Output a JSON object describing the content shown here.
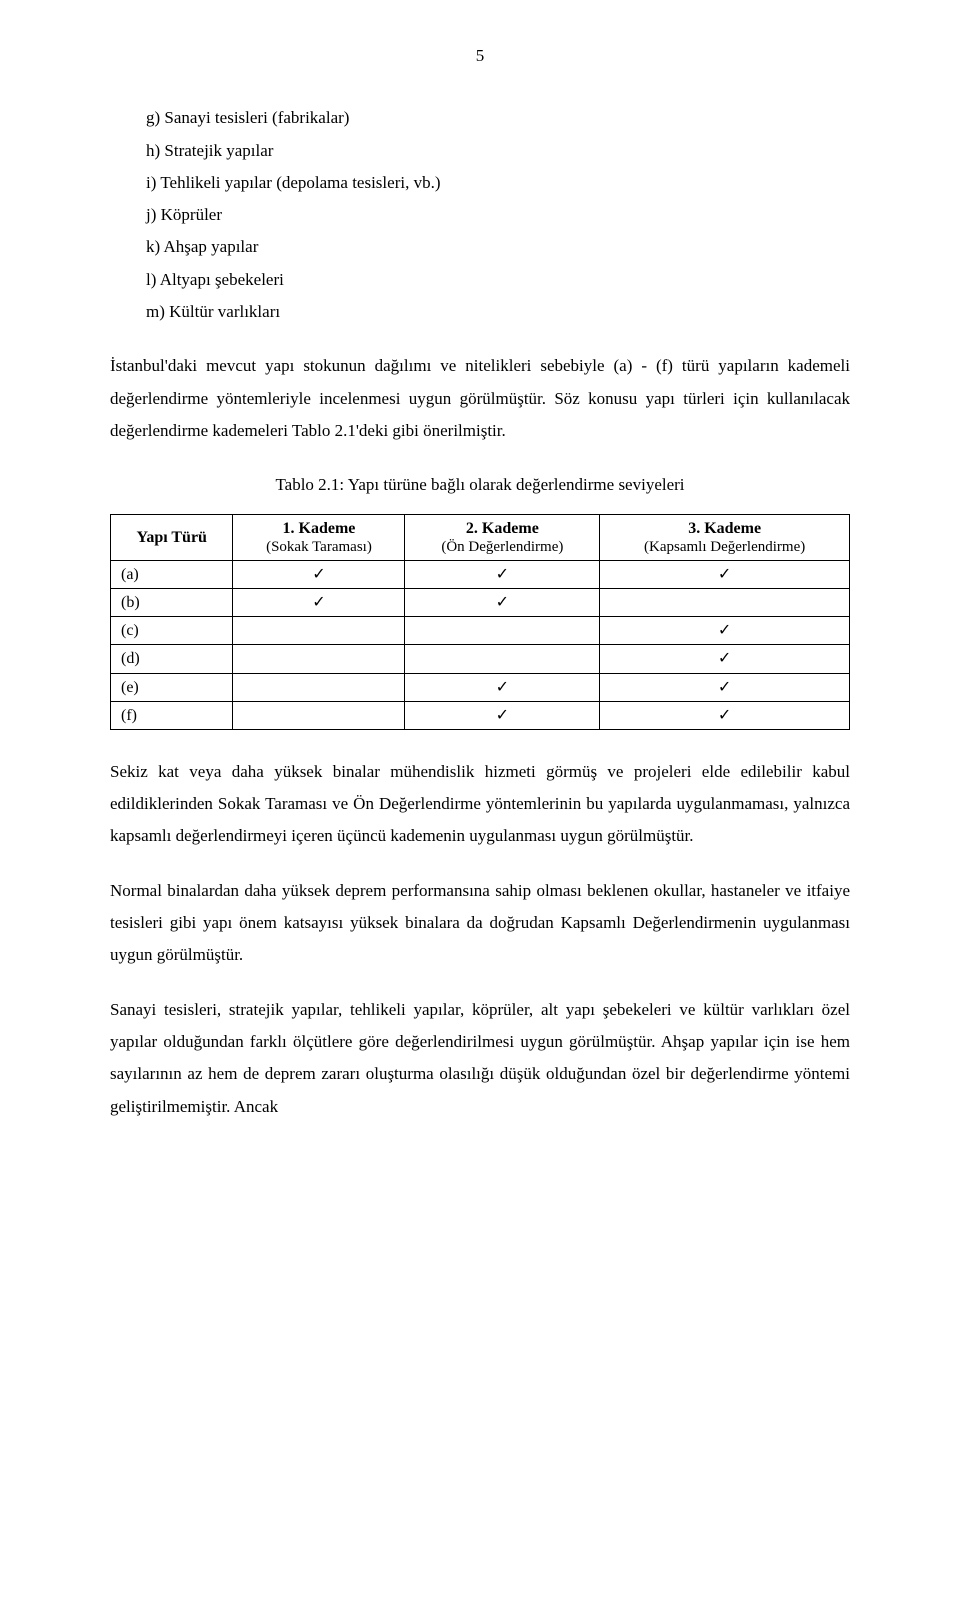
{
  "page_number": "5",
  "list": {
    "items": [
      "g)  Sanayi tesisleri (fabrikalar)",
      "h)  Stratejik yapılar",
      "i)  Tehlikeli yapılar (depolama tesisleri, vb.)",
      "j)  Köprüler",
      "k)  Ahşap yapılar",
      "l)  Altyapı şebekeleri",
      "m) Kültür varlıkları"
    ]
  },
  "para1": "İstanbul'daki mevcut yapı stokunun dağılımı ve nitelikleri sebebiyle (a) - (f) türü yapıların kademeli değerlendirme yöntemleriyle incelenmesi uygun görülmüştür. Söz konusu yapı türleri için kullanılacak değerlendirme kademeleri Tablo 2.1'deki gibi önerilmiştir.",
  "table": {
    "caption": "Tablo 2.1: Yapı türüne bağlı olarak değerlendirme seviyeleri",
    "check_glyph": "✓",
    "headers": {
      "c0": "Yapı Türü",
      "c1_top": "1. Kademe",
      "c1_sub": "(Sokak Taraması)",
      "c2_top": "2. Kademe",
      "c2_sub": "(Ön Değerlendirme)",
      "c3_top": "3. Kademe",
      "c3_sub": "(Kapsamlı Değerlendirme)"
    },
    "rows": [
      {
        "label": "(a)",
        "c1": true,
        "c2": true,
        "c3": true
      },
      {
        "label": "(b)",
        "c1": true,
        "c2": true,
        "c3": false
      },
      {
        "label": "(c)",
        "c1": false,
        "c2": false,
        "c3": true
      },
      {
        "label": "(d)",
        "c1": false,
        "c2": false,
        "c3": true
      },
      {
        "label": "(e)",
        "c1": false,
        "c2": true,
        "c3": true
      },
      {
        "label": "(f)",
        "c1": false,
        "c2": true,
        "c3": true
      }
    ]
  },
  "para2": "Sekiz kat veya daha yüksek binalar mühendislik hizmeti görmüş ve projeleri elde edilebilir kabul edildiklerinden Sokak Taraması ve Ön Değerlendirme yöntemlerinin bu yapılarda uygulanmaması, yalnızca kapsamlı değerlendirmeyi içeren üçüncü kademenin uygulanması uygun görülmüştür.",
  "para3": "Normal binalardan daha yüksek deprem performansına sahip olması beklenen okullar, hastaneler ve itfaiye tesisleri gibi yapı önem katsayısı yüksek binalara da doğrudan Kapsamlı Değerlendirmenin uygulanması uygun görülmüştür.",
  "para4": "Sanayi tesisleri, stratejik yapılar, tehlikeli yapılar, köprüler, alt yapı şebekeleri ve kültür varlıkları özel yapılar olduğundan farklı ölçütlere göre değerlendirilmesi uygun görülmüştür. Ahşap yapılar için ise hem sayılarının az hem de deprem zararı oluşturma olasılığı düşük olduğundan özel bir değerlendirme yöntemi geliştirilmemiştir. Ancak"
}
